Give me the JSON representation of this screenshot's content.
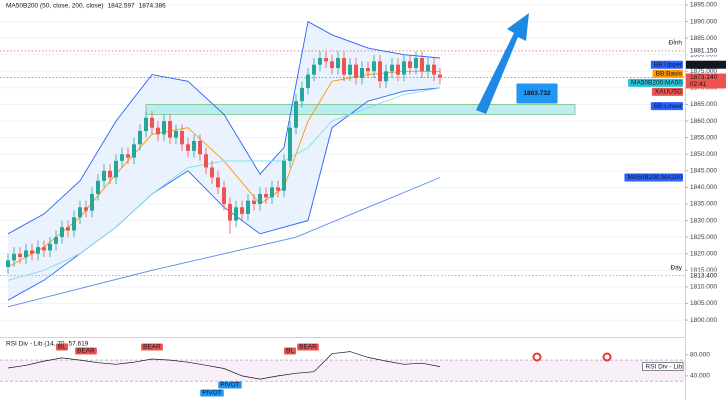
{
  "chart_data": {
    "type": "candlestick",
    "title": "MA50B200 (50, close, 200, close)",
    "title_values": [
      {
        "label": "1842.597",
        "color": "#2962ff"
      },
      {
        "label": "1874.386",
        "color": "#26c6da"
      }
    ],
    "ylim": [
      1795.5,
      1896.5
    ],
    "yticks": [
      {
        "value": 1800,
        "label": "1800.000"
      },
      {
        "value": 1805,
        "label": "1805.000"
      },
      {
        "value": 1810,
        "label": "1810.000"
      },
      {
        "value": 1815,
        "label": "1815.000"
      },
      {
        "value": 1820,
        "label": "1820.000"
      },
      {
        "value": 1825,
        "label": "1825.000"
      },
      {
        "value": 1830,
        "label": "1830.000"
      },
      {
        "value": 1835,
        "label": "1835.000"
      },
      {
        "value": 1840,
        "label": "1840.000"
      },
      {
        "value": 1845,
        "label": "1845.000"
      },
      {
        "value": 1850,
        "label": "1850.000"
      },
      {
        "value": 1855,
        "label": "1855.000"
      },
      {
        "value": 1860,
        "label": "1860.000"
      },
      {
        "value": 1865,
        "label": "1865.000"
      },
      {
        "value": 1870,
        "label": "1870.000"
      },
      {
        "value": 1875,
        "label": "1875.000"
      },
      {
        "value": 1880,
        "label": "1880.000"
      },
      {
        "value": 1885,
        "label": "1885.000"
      },
      {
        "value": 1890,
        "label": "1890.000"
      },
      {
        "value": 1895,
        "label": "1895.000"
      }
    ],
    "up_color": "#26a69a",
    "down_color": "#ef5350",
    "candles": {
      "open": [
        1816,
        1818,
        1820,
        1819,
        1821,
        1820,
        1822,
        1821,
        1823,
        1825,
        1828,
        1827,
        1831,
        1834,
        1833,
        1838,
        1842,
        1845,
        1843,
        1848,
        1850,
        1849,
        1853,
        1857,
        1861,
        1858,
        1856,
        1860,
        1855,
        1857,
        1853,
        1851,
        1854,
        1850,
        1846,
        1843,
        1840,
        1835,
        1830,
        1834,
        1832,
        1836,
        1835,
        1838,
        1837,
        1840,
        1839,
        1848,
        1858,
        1866,
        1870,
        1874,
        1877,
        1879,
        1878,
        1876,
        1879,
        1874,
        1877,
        1873,
        1876,
        1875,
        1878,
        1872,
        1875,
        1877,
        1874,
        1878,
        1876,
        1879,
        1875,
        1877,
        1874
      ],
      "high": [
        1820,
        1822,
        1822,
        1823,
        1823,
        1824,
        1824,
        1825,
        1827,
        1830,
        1830,
        1833,
        1836,
        1836,
        1840,
        1844,
        1847,
        1847,
        1850,
        1852,
        1852,
        1855,
        1859,
        1863,
        1863,
        1860,
        1862,
        1862,
        1859,
        1859,
        1855,
        1856,
        1856,
        1852,
        1848,
        1845,
        1842,
        1837,
        1836,
        1836,
        1838,
        1838,
        1840,
        1840,
        1842,
        1842,
        1850,
        1860,
        1868,
        1872,
        1876,
        1879,
        1881,
        1881,
        1880,
        1881,
        1881,
        1879,
        1879,
        1878,
        1878,
        1880,
        1880,
        1877,
        1879,
        1879,
        1880,
        1880,
        1881,
        1881,
        1879,
        1879,
        1876
      ],
      "low": [
        1814,
        1816,
        1817,
        1817,
        1818,
        1818,
        1819,
        1819,
        1821,
        1823,
        1825,
        1825,
        1829,
        1831,
        1831,
        1836,
        1840,
        1841,
        1841,
        1846,
        1847,
        1847,
        1851,
        1855,
        1856,
        1854,
        1854,
        1853,
        1853,
        1851,
        1849,
        1849,
        1848,
        1844,
        1841,
        1838,
        1833,
        1826,
        1828,
        1830,
        1830,
        1833,
        1833,
        1835,
        1835,
        1837,
        1837,
        1846,
        1856,
        1864,
        1868,
        1872,
        1875,
        1876,
        1874,
        1874,
        1872,
        1872,
        1871,
        1871,
        1873,
        1873,
        1870,
        1870,
        1873,
        1872,
        1872,
        1874,
        1874,
        1873,
        1873,
        1872,
        1871
      ],
      "close": [
        1818,
        1820,
        1819,
        1821,
        1820,
        1822,
        1821,
        1823,
        1825,
        1828,
        1827,
        1831,
        1834,
        1833,
        1838,
        1842,
        1845,
        1843,
        1848,
        1850,
        1849,
        1853,
        1857,
        1861,
        1858,
        1856,
        1860,
        1855,
        1857,
        1853,
        1851,
        1854,
        1850,
        1846,
        1843,
        1840,
        1835,
        1830,
        1834,
        1832,
        1836,
        1835,
        1838,
        1837,
        1840,
        1839,
        1848,
        1858,
        1866,
        1870,
        1874,
        1877,
        1879,
        1878,
        1876,
        1879,
        1874,
        1877,
        1873,
        1876,
        1875,
        1878,
        1872,
        1875,
        1877,
        1874,
        1878,
        1876,
        1879,
        1875,
        1877,
        1874,
        1873.14
      ]
    },
    "overlays": [
      {
        "x": [
          0,
          6,
          12,
          18,
          24,
          30,
          36,
          42,
          46,
          50,
          54,
          60,
          66,
          72
        ],
        "values": [
          1826,
          1832,
          1842,
          1860,
          1874,
          1872,
          1862,
          1844,
          1852,
          1890,
          1886,
          1882,
          1880,
          1879
        ],
        "color": "#2962ff"
      },
      {
        "x": [
          0,
          6,
          12,
          18,
          24,
          30,
          36,
          42,
          46,
          50,
          54,
          60,
          66,
          72
        ],
        "values": [
          1806,
          1812,
          1820,
          1828,
          1838,
          1845,
          1834,
          1826,
          1828,
          1830,
          1858,
          1866,
          1869,
          1870
        ],
        "color": "#2962ff"
      },
      {
        "x": [
          0,
          6,
          12,
          18,
          24,
          30,
          36,
          42,
          46,
          50,
          54,
          60,
          66,
          72
        ],
        "values": [
          1816,
          1822,
          1831,
          1844,
          1856,
          1858,
          1848,
          1835,
          1840,
          1860,
          1872,
          1874,
          1875,
          1875
        ],
        "color": "#ff9800"
      },
      {
        "x": [
          0,
          6,
          12,
          18,
          24,
          30,
          36,
          42,
          46,
          50,
          54,
          60,
          66,
          72
        ],
        "values": [
          1812,
          1815,
          1820,
          1828,
          1838,
          1846,
          1848,
          1848,
          1848,
          1852,
          1860,
          1864,
          1868,
          1870
        ],
        "color": "#80deea"
      },
      {
        "x": [
          0,
          24,
          48,
          72
        ],
        "values": [
          1804,
          1815,
          1825,
          1843
        ],
        "color": "#5b8def"
      }
    ],
    "band_fill": "#e3effd",
    "levels": [
      {
        "value": 1881.15,
        "color": "#e57373"
      },
      {
        "value": 1873.14,
        "color": "#ef5350"
      },
      {
        "value": 1813.4,
        "color": "#9e9e9e"
      }
    ],
    "zone": {
      "from": 1862,
      "to": 1865,
      "start": 23,
      "label": "1863.732",
      "color": "#b2ebf2"
    },
    "tags": [
      {
        "name": "Đỉnh",
        "value": 1881.15,
        "label": "1881.150",
        "color": "#787b86"
      },
      {
        "name": "BB:Upper",
        "value": 1876.99,
        "label": "1876.990",
        "color": "#2962ff"
      },
      {
        "name": "BB:Basis",
        "value": 1874.5,
        "color": "#ff9800"
      },
      {
        "name": "MA50B200:MA50",
        "value": 1871.5,
        "color": "#26c6da"
      },
      {
        "name": "XAUUSD",
        "value": 1873.14,
        "label": "1873.140",
        "sub": "02:41",
        "color": "#ef5350"
      },
      {
        "name": "BB:Lower",
        "value": 1864.5,
        "color": "#2962ff"
      },
      {
        "name": "MA50B200:MA200",
        "value": 1843,
        "color": "#2962ff"
      },
      {
        "name": "Đáy",
        "value": 1813.4,
        "label": "1813.400",
        "color": "#787b86"
      }
    ],
    "rsi": {
      "title": "RSI Div - Lib (14, 70",
      "last": "57.619",
      "badge": "RSI Div - Lib",
      "ylim": [
        0,
        108
      ],
      "yticks": [
        {
          "value": 80,
          "label": "80.000"
        },
        {
          "value": 40,
          "label": "40.000"
        }
      ],
      "bands": [
        70,
        30
      ],
      "color": "#131722",
      "x": [
        0,
        3,
        6,
        9,
        12,
        15,
        18,
        21,
        24,
        27,
        30,
        33,
        36,
        39,
        42,
        45,
        48,
        51,
        54,
        57,
        60,
        63,
        66,
        69,
        72
      ],
      "values": [
        55,
        60,
        68,
        74,
        70,
        65,
        62,
        66,
        72,
        70,
        66,
        60,
        54,
        40,
        34,
        40,
        45,
        48,
        82,
        86,
        75,
        68,
        62,
        64,
        57.619
      ],
      "markers": [
        {
          "label": "BL",
          "x": 9,
          "color": "#ef5350"
        },
        {
          "label": "BEAR",
          "x": 13,
          "color": "#ef5350"
        },
        {
          "label": "BEAR",
          "x": 24,
          "color": "#ef5350"
        },
        {
          "label": "PIVOT",
          "x": 34,
          "color": "#2196f3"
        },
        {
          "label": "PIVOT",
          "x": 37,
          "color": "#2196f3"
        },
        {
          "label": "BL",
          "x": 47,
          "color": "#ef5350"
        },
        {
          "label": "BEAR",
          "x": 50,
          "color": "#ef5350"
        }
      ]
    }
  }
}
